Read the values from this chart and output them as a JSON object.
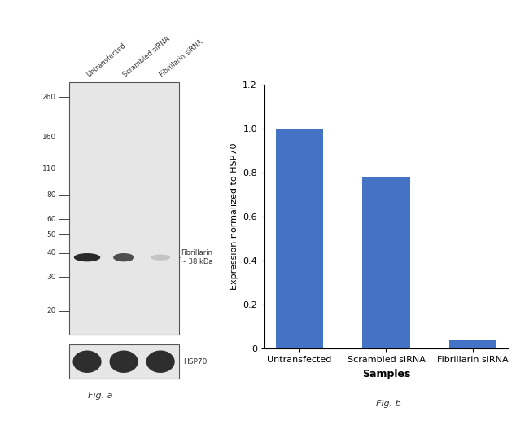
{
  "fig_width": 6.5,
  "fig_height": 5.22,
  "dpi": 100,
  "background_color": "#ffffff",
  "wb_panel": {
    "lane_labels": [
      "Untransfected",
      "Scrambled siRNA",
      "Fibrillarin siRNA"
    ],
    "mw_markers": [
      260,
      160,
      110,
      80,
      60,
      50,
      40,
      30,
      20
    ],
    "gel_bg": "#e6e6e6",
    "band_color": "#1a1a1a",
    "fibrillarin_label": "Fibrillarin\n~ 38 kDa",
    "hsp70_label": "HSP70",
    "fig_label": "Fig. a",
    "lane_intensities": [
      1.0,
      0.8,
      0.08
    ],
    "hsp70_intensities": [
      1.0,
      1.0,
      1.0
    ]
  },
  "bar_panel": {
    "categories": [
      "Untransfected",
      "Scrambled siRNA",
      "Fibrillarin siRNA"
    ],
    "values": [
      1.0,
      0.78,
      0.04
    ],
    "bar_color": "#4472C4",
    "bar_width": 0.55,
    "ylim": [
      0,
      1.2
    ],
    "yticks": [
      0,
      0.2,
      0.4,
      0.6,
      0.8,
      1.0,
      1.2
    ],
    "ylabel": "Expression normalized to HSP70",
    "xlabel": "Samples",
    "xlabel_fontweight": "bold",
    "fig_label": "Fig. b"
  }
}
